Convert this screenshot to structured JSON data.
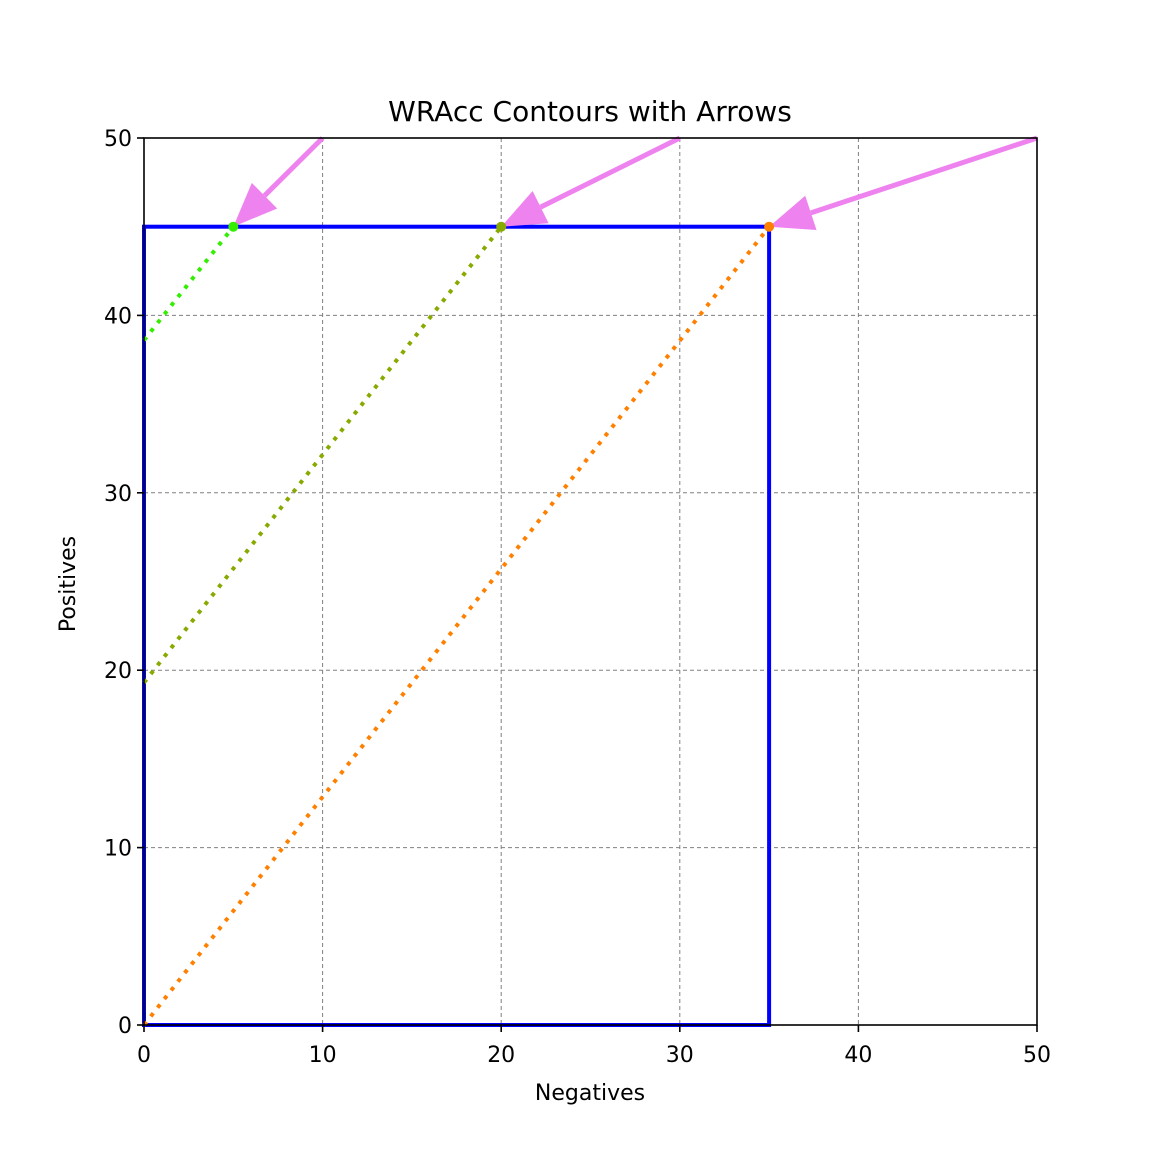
{
  "chart_data": {
    "type": "line",
    "title": "WRAcc Contours with Arrows",
    "xlabel": "Negatives",
    "ylabel": "Positives",
    "xlim": [
      0,
      50
    ],
    "ylim": [
      0,
      50
    ],
    "xticks": [
      "0",
      "10",
      "20",
      "30",
      "40",
      "50"
    ],
    "yticks": [
      "0",
      "10",
      "20",
      "30",
      "40",
      "50"
    ],
    "grid": true,
    "colors": {
      "rectangle": "#0000ff",
      "arrow": "#ee82ee",
      "grid": "#808080"
    },
    "rectangle": {
      "x": [
        0,
        35
      ],
      "y": [
        0,
        45
      ]
    },
    "contours": [
      {
        "x": [
          0,
          5
        ],
        "y": [
          38.6,
          45
        ],
        "color": "#33ee00"
      },
      {
        "x": [
          0,
          20
        ],
        "y": [
          19.3,
          45
        ],
        "color": "#88aa00"
      },
      {
        "x": [
          0,
          35
        ],
        "y": [
          0,
          45
        ],
        "color": "#ff8000"
      }
    ],
    "points": [
      {
        "x": 5,
        "y": 45,
        "color": "#33ee00"
      },
      {
        "x": 20,
        "y": 45,
        "color": "#88aa00"
      },
      {
        "x": 35,
        "y": 45,
        "color": "#ff8000"
      }
    ],
    "arrows": [
      {
        "from": [
          10,
          50
        ],
        "to": [
          5,
          45
        ]
      },
      {
        "from": [
          30,
          50
        ],
        "to": [
          20,
          45
        ]
      },
      {
        "from": [
          50,
          50
        ],
        "to": [
          35,
          45
        ]
      }
    ]
  }
}
